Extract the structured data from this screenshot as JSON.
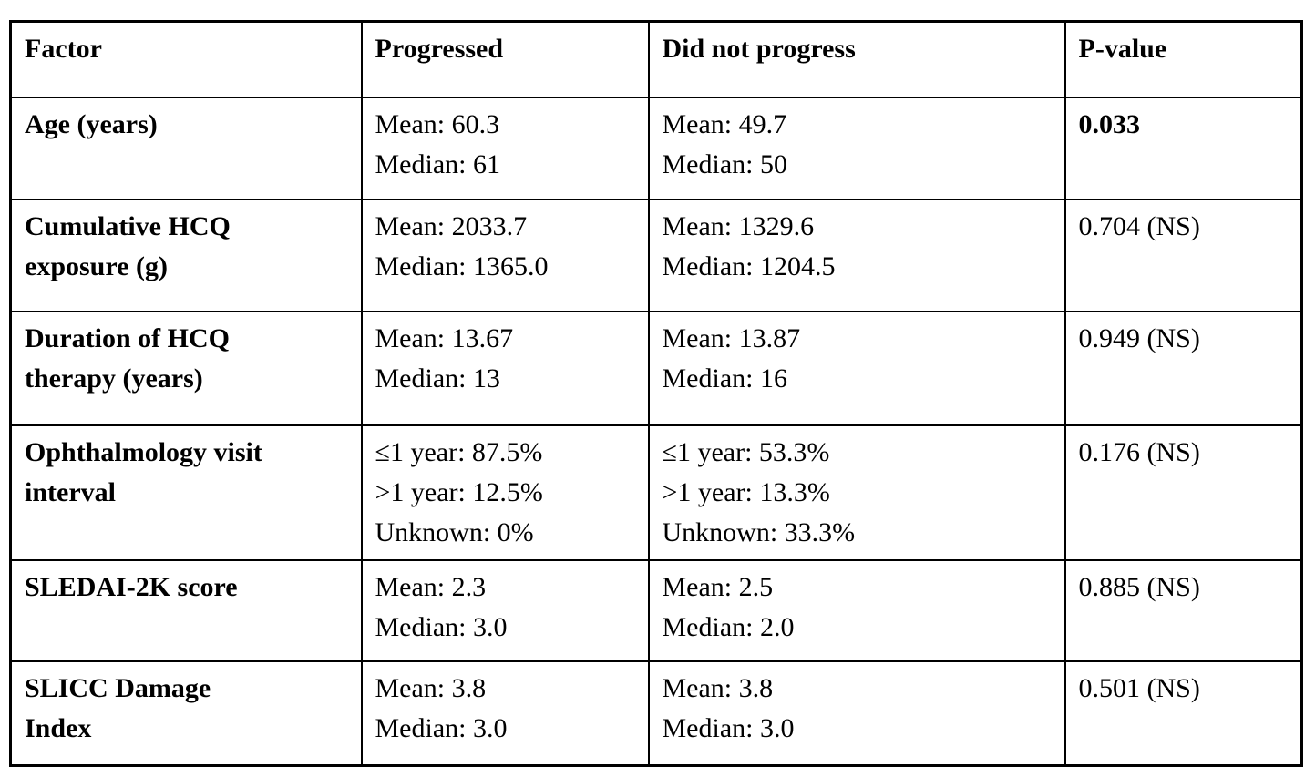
{
  "colors": {
    "border": "#000000",
    "background": "#ffffff",
    "text": "#000000"
  },
  "table": {
    "columns": [
      "Factor",
      "Progressed",
      "Did not progress",
      "P-value"
    ],
    "rows": [
      {
        "factor_lines": [
          "Age (years)"
        ],
        "progressed_lines": [
          "Mean: 60.3",
          "Median: 61"
        ],
        "did_not_progress_lines": [
          "Mean: 49.7",
          "Median: 50"
        ],
        "p_value": "0.033",
        "p_value_bold": true
      },
      {
        "factor_lines": [
          "Cumulative HCQ",
          "exposure (g)"
        ],
        "progressed_lines": [
          "Mean: 2033.7",
          "Median: 1365.0"
        ],
        "did_not_progress_lines": [
          "Mean: 1329.6",
          "Median: 1204.5"
        ],
        "p_value": "0.704 (NS)",
        "p_value_bold": false
      },
      {
        "factor_lines": [
          "Duration of HCQ",
          "therapy (years)"
        ],
        "progressed_lines": [
          "Mean: 13.67",
          "Median: 13"
        ],
        "did_not_progress_lines": [
          "Mean: 13.87",
          "Median: 16"
        ],
        "p_value": "0.949 (NS)",
        "p_value_bold": false
      },
      {
        "factor_lines": [
          "Ophthalmology visit",
          "interval"
        ],
        "progressed_lines": [
          "≤1 year: 87.5%",
          ">1 year: 12.5%",
          "Unknown: 0%"
        ],
        "did_not_progress_lines": [
          "≤1 year: 53.3%",
          ">1 year: 13.3%",
          "Unknown: 33.3%"
        ],
        "p_value": "0.176 (NS)",
        "p_value_bold": false
      },
      {
        "factor_lines": [
          "SLEDAI-2K score"
        ],
        "progressed_lines": [
          "Mean: 2.3",
          "Median: 3.0"
        ],
        "did_not_progress_lines": [
          "Mean: 2.5",
          "Median: 2.0"
        ],
        "p_value": "0.885 (NS)",
        "p_value_bold": false
      },
      {
        "factor_lines": [
          "SLICC Damage",
          "Index"
        ],
        "progressed_lines": [
          "Mean: 3.8",
          "Median: 3.0"
        ],
        "did_not_progress_lines": [
          "Mean: 3.8",
          "Median: 3.0"
        ],
        "p_value": "0.501 (NS)",
        "p_value_bold": false
      }
    ]
  }
}
